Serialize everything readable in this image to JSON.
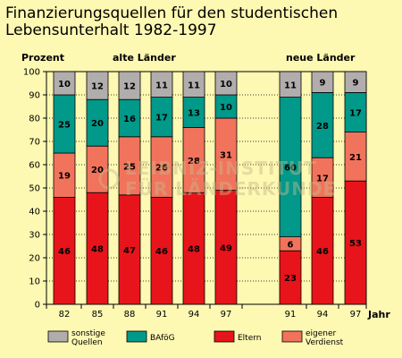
{
  "title_line1": "Finanzierungsquellen für den studentischen",
  "title_line2": "Lebensunterhalt 1982-1997",
  "labels": {
    "prozent": "Prozent",
    "alte": "alte Länder",
    "neue": "neue Länder",
    "jahr": "Jahr"
  },
  "watermark": {
    "line1": "LEIBNIZ-INSTITUT",
    "line2": "FÜR LÄNDERKUNDE"
  },
  "colors": {
    "Eltern": "#e8141b",
    "eigener Verdienst": "#f2735c",
    "BAföG": "#00998a",
    "sonstige Quellen": "#b2adad"
  },
  "chart_data": {
    "type": "bar",
    "stacked": true,
    "ylim": [
      0,
      100
    ],
    "yticks": [
      0,
      10,
      20,
      30,
      40,
      50,
      60,
      70,
      80,
      90,
      100
    ],
    "groups": [
      {
        "name": "alte Länder",
        "categories": [
          "82",
          "85",
          "88",
          "91",
          "94",
          "97"
        ]
      },
      {
        "name": "neue Länder",
        "categories": [
          "91",
          "94",
          "97"
        ]
      }
    ],
    "series": [
      {
        "name": "Eltern",
        "legend": [
          "Eltern"
        ],
        "values": [
          46,
          48,
          47,
          46,
          48,
          49,
          23,
          46,
          53
        ]
      },
      {
        "name": "eigener Verdienst",
        "legend": [
          "eigener",
          "Verdienst"
        ],
        "values": [
          19,
          20,
          25,
          26,
          28,
          31,
          6,
          17,
          21
        ]
      },
      {
        "name": "BAföG",
        "legend": [
          "BAföG"
        ],
        "values": [
          25,
          20,
          16,
          17,
          13,
          10,
          60,
          28,
          17
        ]
      },
      {
        "name": "sonstige Quellen",
        "legend": [
          "sonstige",
          "Quellen"
        ],
        "values": [
          10,
          12,
          12,
          11,
          11,
          10,
          11,
          9,
          9
        ]
      }
    ],
    "legend_order": [
      "sonstige Quellen",
      "BAföG",
      "Eltern",
      "eigener Verdienst"
    ],
    "grid": true,
    "legend_position": "bottom"
  }
}
